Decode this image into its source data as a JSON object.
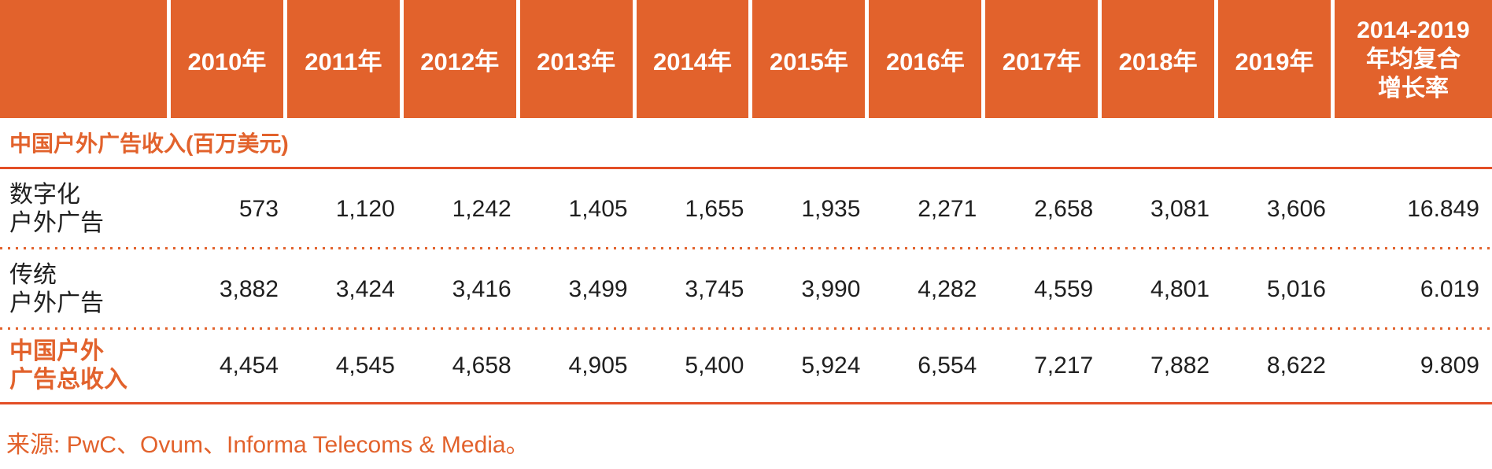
{
  "colors": {
    "orange": "#E2622C",
    "line": "#E34E26",
    "dark": "#1F1F1F",
    "white": "#FFFFFF"
  },
  "table": {
    "header": {
      "corner": "",
      "years": [
        "2010年",
        "2011年",
        "2012年",
        "2013年",
        "2014年",
        "2015年",
        "2016年",
        "2017年",
        "2018年",
        "2019年"
      ],
      "cagr": "2014-2019\n年均复合\n增长率"
    },
    "section_title": "中国户外广告收入(百万美元)",
    "rows": [
      {
        "label": "数字化\n户外广告",
        "values": [
          "573",
          "1,120",
          "1,242",
          "1,405",
          "1,655",
          "1,935",
          "2,271",
          "2,658",
          "3,081",
          "3,606",
          "16.849"
        ]
      },
      {
        "label": "传统\n户外广告",
        "values": [
          "3,882",
          "3,424",
          "3,416",
          "3,499",
          "3,745",
          "3,990",
          "4,282",
          "4,559",
          "4,801",
          "5,016",
          "6.019"
        ]
      },
      {
        "label": "中国户外\n广告总收入",
        "values": [
          "4,454",
          "4,545",
          "4,658",
          "4,905",
          "5,400",
          "5,924",
          "6,554",
          "7,217",
          "7,882",
          "8,622",
          "9.809"
        ]
      }
    ]
  },
  "source": "来源: PwC、Ovum、Informa Telecoms & Media。",
  "chart_data": {
    "type": "table",
    "title": "中国户外广告收入(百万美元)",
    "categories": [
      "2010年",
      "2011年",
      "2012年",
      "2013年",
      "2014年",
      "2015年",
      "2016年",
      "2017年",
      "2018年",
      "2019年",
      "2014-2019年均复合增长率"
    ],
    "series": [
      {
        "name": "数字化户外广告",
        "values": [
          573,
          1120,
          1242,
          1405,
          1655,
          1935,
          2271,
          2658,
          3081,
          3606
        ],
        "cagr_2014_2019": 16.849
      },
      {
        "name": "传统户外广告",
        "values": [
          3882,
          3424,
          3416,
          3499,
          3745,
          3990,
          4282,
          4559,
          4801,
          5016
        ],
        "cagr_2014_2019": 6.019
      },
      {
        "name": "中国户外广告总收入",
        "values": [
          4454,
          4545,
          4658,
          4905,
          5400,
          5924,
          6554,
          7217,
          7882,
          8622
        ],
        "cagr_2014_2019": 9.809
      }
    ],
    "source": "来源: PwC、Ovum、Informa Telecoms & Media。"
  }
}
